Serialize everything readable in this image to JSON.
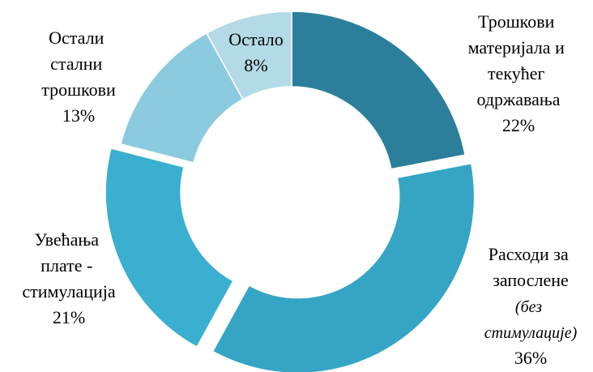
{
  "chart_data": {
    "type": "donut",
    "categories": [
      "Трошкови материјала и текућег одржавања",
      "Расходи за запослене",
      "Увећања плате - стимулација",
      "Остали стални трошкови",
      "Остало"
    ],
    "values": [
      22,
      36,
      21,
      13,
      8
    ],
    "value_labels": [
      "22%",
      "36%",
      "21%",
      "13%",
      "8%"
    ],
    "colors": [
      "#2c7f9b",
      "#36a5c5",
      "#3aafcf",
      "#8ccbdf",
      "#b3dae6"
    ],
    "exploded": [
      false,
      true,
      true,
      false,
      false
    ],
    "annotations": [
      "(без стимулације)"
    ]
  }
}
